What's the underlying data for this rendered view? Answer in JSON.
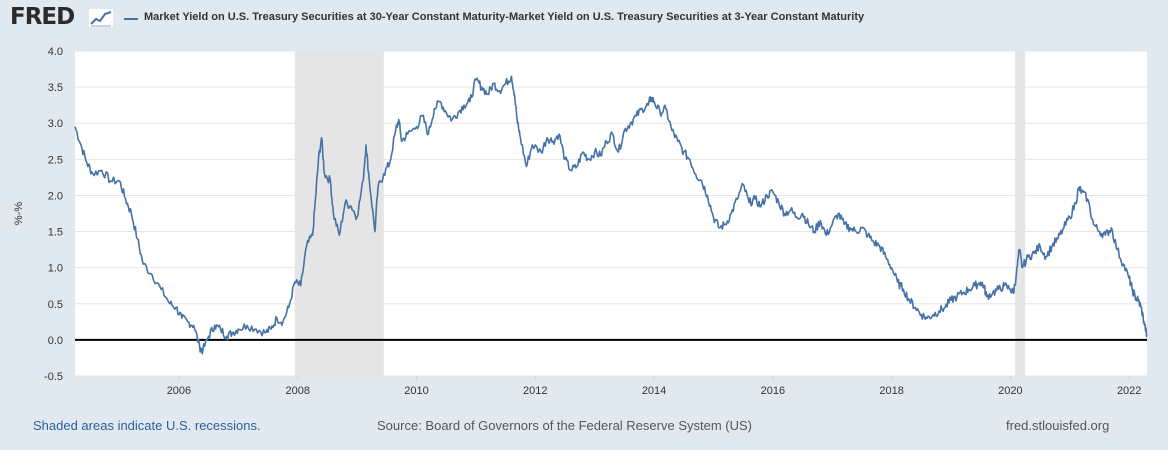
{
  "header": {
    "logo_text": "FRED",
    "logo_icon": "line-chart-icon",
    "series_title": "Market Yield on U.S. Treasury Securities at 30-Year Constant Maturity-Market Yield on U.S. Treasury Securities at 3-Year Constant Maturity"
  },
  "footer": {
    "recession_note": "Shaded areas indicate U.S. recessions.",
    "source": "Source: Board of Governors of the Federal Reserve System (US)",
    "site": "fred.stlouisfed.org"
  },
  "colors": {
    "series": "#4572a7",
    "recession": "#e5e5e5",
    "zero_line": "#000000",
    "grid": "#e6e6e6",
    "background": "#e1e9f0"
  },
  "chart_data": {
    "type": "line",
    "title": "",
    "xlabel": "",
    "ylabel": "%-%",
    "xlim": [
      2004.25,
      2022.3
    ],
    "ylim": [
      -0.5,
      4.0
    ],
    "y_ticks": [
      "-0.5",
      "0.0",
      "0.5",
      "1.0",
      "1.5",
      "2.0",
      "2.5",
      "3.0",
      "3.5",
      "4.0"
    ],
    "x_ticks": [
      "2006",
      "2008",
      "2010",
      "2012",
      "2014",
      "2016",
      "2018",
      "2020",
      "2022"
    ],
    "recessions": [
      [
        2007.95,
        2009.45
      ],
      [
        2020.08,
        2020.25
      ]
    ],
    "reference_line": 0.0,
    "grid": true,
    "series": [
      {
        "points": [
          [
            2004.25,
            2.95
          ],
          [
            2004.35,
            2.7
          ],
          [
            2004.45,
            2.45
          ],
          [
            2004.55,
            2.3
          ],
          [
            2004.7,
            2.35
          ],
          [
            2004.85,
            2.2
          ],
          [
            2005.0,
            2.2
          ],
          [
            2005.1,
            1.95
          ],
          [
            2005.2,
            1.75
          ],
          [
            2005.3,
            1.4
          ],
          [
            2005.4,
            1.05
          ],
          [
            2005.55,
            0.9
          ],
          [
            2005.7,
            0.7
          ],
          [
            2005.85,
            0.5
          ],
          [
            2005.95,
            0.45
          ],
          [
            2006.05,
            0.3
          ],
          [
            2006.15,
            0.25
          ],
          [
            2006.25,
            0.2
          ],
          [
            2006.35,
            -0.1
          ],
          [
            2006.4,
            -0.15
          ],
          [
            2006.5,
            0.05
          ],
          [
            2006.6,
            0.2
          ],
          [
            2006.7,
            0.15
          ],
          [
            2006.8,
            0.05
          ],
          [
            2006.9,
            0.1
          ],
          [
            2007.0,
            0.15
          ],
          [
            2007.15,
            0.2
          ],
          [
            2007.3,
            0.15
          ],
          [
            2007.45,
            0.1
          ],
          [
            2007.55,
            0.15
          ],
          [
            2007.65,
            0.3
          ],
          [
            2007.75,
            0.25
          ],
          [
            2007.85,
            0.45
          ],
          [
            2007.95,
            0.8
          ],
          [
            2008.05,
            0.75
          ],
          [
            2008.15,
            1.3
          ],
          [
            2008.25,
            1.45
          ],
          [
            2008.3,
            1.95
          ],
          [
            2008.35,
            2.5
          ],
          [
            2008.4,
            2.8
          ],
          [
            2008.45,
            2.3
          ],
          [
            2008.55,
            2.2
          ],
          [
            2008.6,
            1.75
          ],
          [
            2008.7,
            1.45
          ],
          [
            2008.8,
            1.9
          ],
          [
            2008.9,
            1.85
          ],
          [
            2009.0,
            1.7
          ],
          [
            2009.1,
            2.2
          ],
          [
            2009.15,
            2.7
          ],
          [
            2009.2,
            2.25
          ],
          [
            2009.3,
            1.5
          ],
          [
            2009.35,
            2.1
          ],
          [
            2009.45,
            2.3
          ],
          [
            2009.55,
            2.45
          ],
          [
            2009.65,
            2.9
          ],
          [
            2009.7,
            3.05
          ],
          [
            2009.75,
            2.75
          ],
          [
            2009.85,
            2.85
          ],
          [
            2010.0,
            2.95
          ],
          [
            2010.1,
            3.1
          ],
          [
            2010.2,
            2.85
          ],
          [
            2010.3,
            3.2
          ],
          [
            2010.4,
            3.3
          ],
          [
            2010.5,
            3.15
          ],
          [
            2010.6,
            3.05
          ],
          [
            2010.7,
            3.15
          ],
          [
            2010.8,
            3.25
          ],
          [
            2010.9,
            3.3
          ],
          [
            2011.0,
            3.6
          ],
          [
            2011.1,
            3.5
          ],
          [
            2011.2,
            3.4
          ],
          [
            2011.3,
            3.55
          ],
          [
            2011.4,
            3.45
          ],
          [
            2011.5,
            3.55
          ],
          [
            2011.6,
            3.65
          ],
          [
            2011.65,
            3.4
          ],
          [
            2011.7,
            3.0
          ],
          [
            2011.75,
            2.8
          ],
          [
            2011.85,
            2.4
          ],
          [
            2011.95,
            2.7
          ],
          [
            2012.1,
            2.6
          ],
          [
            2012.2,
            2.8
          ],
          [
            2012.3,
            2.75
          ],
          [
            2012.4,
            2.85
          ],
          [
            2012.5,
            2.5
          ],
          [
            2012.6,
            2.35
          ],
          [
            2012.7,
            2.4
          ],
          [
            2012.8,
            2.6
          ],
          [
            2012.9,
            2.5
          ],
          [
            2013.0,
            2.6
          ],
          [
            2013.1,
            2.55
          ],
          [
            2013.2,
            2.75
          ],
          [
            2013.3,
            2.85
          ],
          [
            2013.4,
            2.6
          ],
          [
            2013.5,
            2.9
          ],
          [
            2013.6,
            3.0
          ],
          [
            2013.7,
            3.1
          ],
          [
            2013.8,
            3.2
          ],
          [
            2013.9,
            3.25
          ],
          [
            2013.95,
            3.35
          ],
          [
            2014.0,
            3.3
          ],
          [
            2014.1,
            3.15
          ],
          [
            2014.2,
            3.2
          ],
          [
            2014.3,
            2.9
          ],
          [
            2014.4,
            2.75
          ],
          [
            2014.5,
            2.6
          ],
          [
            2014.6,
            2.5
          ],
          [
            2014.7,
            2.3
          ],
          [
            2014.8,
            2.2
          ],
          [
            2014.9,
            2.0
          ],
          [
            2015.0,
            1.7
          ],
          [
            2015.1,
            1.55
          ],
          [
            2015.2,
            1.6
          ],
          [
            2015.3,
            1.75
          ],
          [
            2015.4,
            1.95
          ],
          [
            2015.5,
            2.15
          ],
          [
            2015.6,
            1.9
          ],
          [
            2015.7,
            1.95
          ],
          [
            2015.8,
            1.85
          ],
          [
            2015.9,
            2.0
          ],
          [
            2016.0,
            2.05
          ],
          [
            2016.1,
            1.9
          ],
          [
            2016.2,
            1.75
          ],
          [
            2016.3,
            1.8
          ],
          [
            2016.4,
            1.7
          ],
          [
            2016.5,
            1.75
          ],
          [
            2016.6,
            1.6
          ],
          [
            2016.7,
            1.5
          ],
          [
            2016.8,
            1.65
          ],
          [
            2016.9,
            1.45
          ],
          [
            2017.0,
            1.6
          ],
          [
            2017.1,
            1.75
          ],
          [
            2017.2,
            1.6
          ],
          [
            2017.3,
            1.55
          ],
          [
            2017.4,
            1.5
          ],
          [
            2017.5,
            1.55
          ],
          [
            2017.6,
            1.45
          ],
          [
            2017.7,
            1.35
          ],
          [
            2017.8,
            1.3
          ],
          [
            2017.9,
            1.15
          ],
          [
            2018.0,
            1.0
          ],
          [
            2018.1,
            0.8
          ],
          [
            2018.2,
            0.7
          ],
          [
            2018.3,
            0.55
          ],
          [
            2018.4,
            0.45
          ],
          [
            2018.5,
            0.35
          ],
          [
            2018.6,
            0.3
          ],
          [
            2018.7,
            0.35
          ],
          [
            2018.8,
            0.4
          ],
          [
            2018.9,
            0.45
          ],
          [
            2019.0,
            0.55
          ],
          [
            2019.1,
            0.6
          ],
          [
            2019.2,
            0.65
          ],
          [
            2019.3,
            0.7
          ],
          [
            2019.4,
            0.75
          ],
          [
            2019.5,
            0.8
          ],
          [
            2019.55,
            0.75
          ],
          [
            2019.6,
            0.6
          ],
          [
            2019.7,
            0.65
          ],
          [
            2019.8,
            0.7
          ],
          [
            2019.9,
            0.75
          ],
          [
            2020.0,
            0.7
          ],
          [
            2020.05,
            0.65
          ],
          [
            2020.1,
            0.9
          ],
          [
            2020.15,
            1.25
          ],
          [
            2020.2,
            1.0
          ],
          [
            2020.3,
            1.15
          ],
          [
            2020.4,
            1.2
          ],
          [
            2020.5,
            1.3
          ],
          [
            2020.6,
            1.15
          ],
          [
            2020.7,
            1.3
          ],
          [
            2020.8,
            1.4
          ],
          [
            2020.9,
            1.55
          ],
          [
            2021.0,
            1.7
          ],
          [
            2021.1,
            1.9
          ],
          [
            2021.15,
            2.1
          ],
          [
            2021.2,
            2.05
          ],
          [
            2021.3,
            1.95
          ],
          [
            2021.4,
            1.6
          ],
          [
            2021.5,
            1.5
          ],
          [
            2021.6,
            1.45
          ],
          [
            2021.7,
            1.55
          ],
          [
            2021.8,
            1.25
          ],
          [
            2021.9,
            1.05
          ],
          [
            2022.0,
            0.85
          ],
          [
            2022.05,
            0.7
          ],
          [
            2022.1,
            0.6
          ],
          [
            2022.15,
            0.55
          ],
          [
            2022.2,
            0.45
          ],
          [
            2022.25,
            0.25
          ],
          [
            2022.3,
            0.05
          ]
        ]
      }
    ]
  }
}
